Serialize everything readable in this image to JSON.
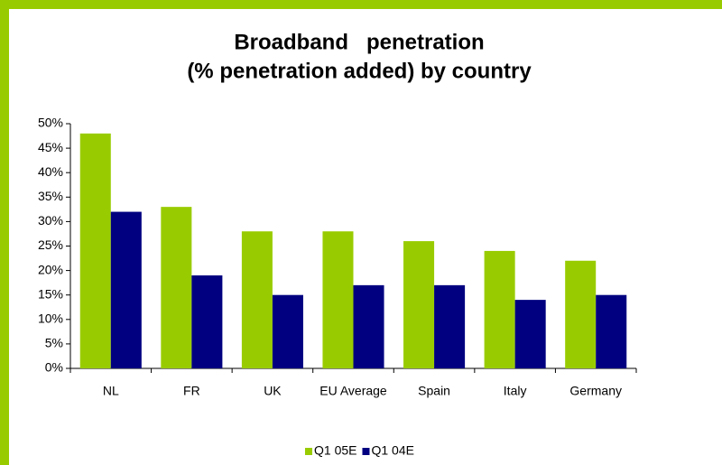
{
  "chart_data": {
    "type": "bar",
    "title": [
      "Broadband   penetration",
      "(% penetration added) by country"
    ],
    "categories": [
      "NL",
      "FR",
      "UK",
      "EU Average",
      "Spain",
      "Italy",
      "Germany"
    ],
    "series": [
      {
        "name": "Q1 05E",
        "color": "#99cc00",
        "values": [
          48,
          33,
          28,
          28,
          26,
          24,
          22
        ]
      },
      {
        "name": "Q1 04E",
        "color": "#000080",
        "values": [
          32,
          19,
          15,
          17,
          17,
          14,
          15
        ]
      }
    ],
    "ylim": [
      0,
      50
    ],
    "yticks": [
      {
        "value": 0,
        "label": "0%"
      },
      {
        "value": 5,
        "label": "5%"
      },
      {
        "value": 10,
        "label": "10%"
      },
      {
        "value": 15,
        "label": "15%"
      },
      {
        "value": 20,
        "label": "20%"
      },
      {
        "value": 25,
        "label": "25%"
      },
      {
        "value": 30,
        "label": "30%"
      },
      {
        "value": 35,
        "label": "35%"
      },
      {
        "value": 40,
        "label": "40%"
      },
      {
        "value": 45,
        "label": "45%"
      },
      {
        "value": 50,
        "label": "50%"
      }
    ],
    "grid": false,
    "legend": "bottom"
  }
}
